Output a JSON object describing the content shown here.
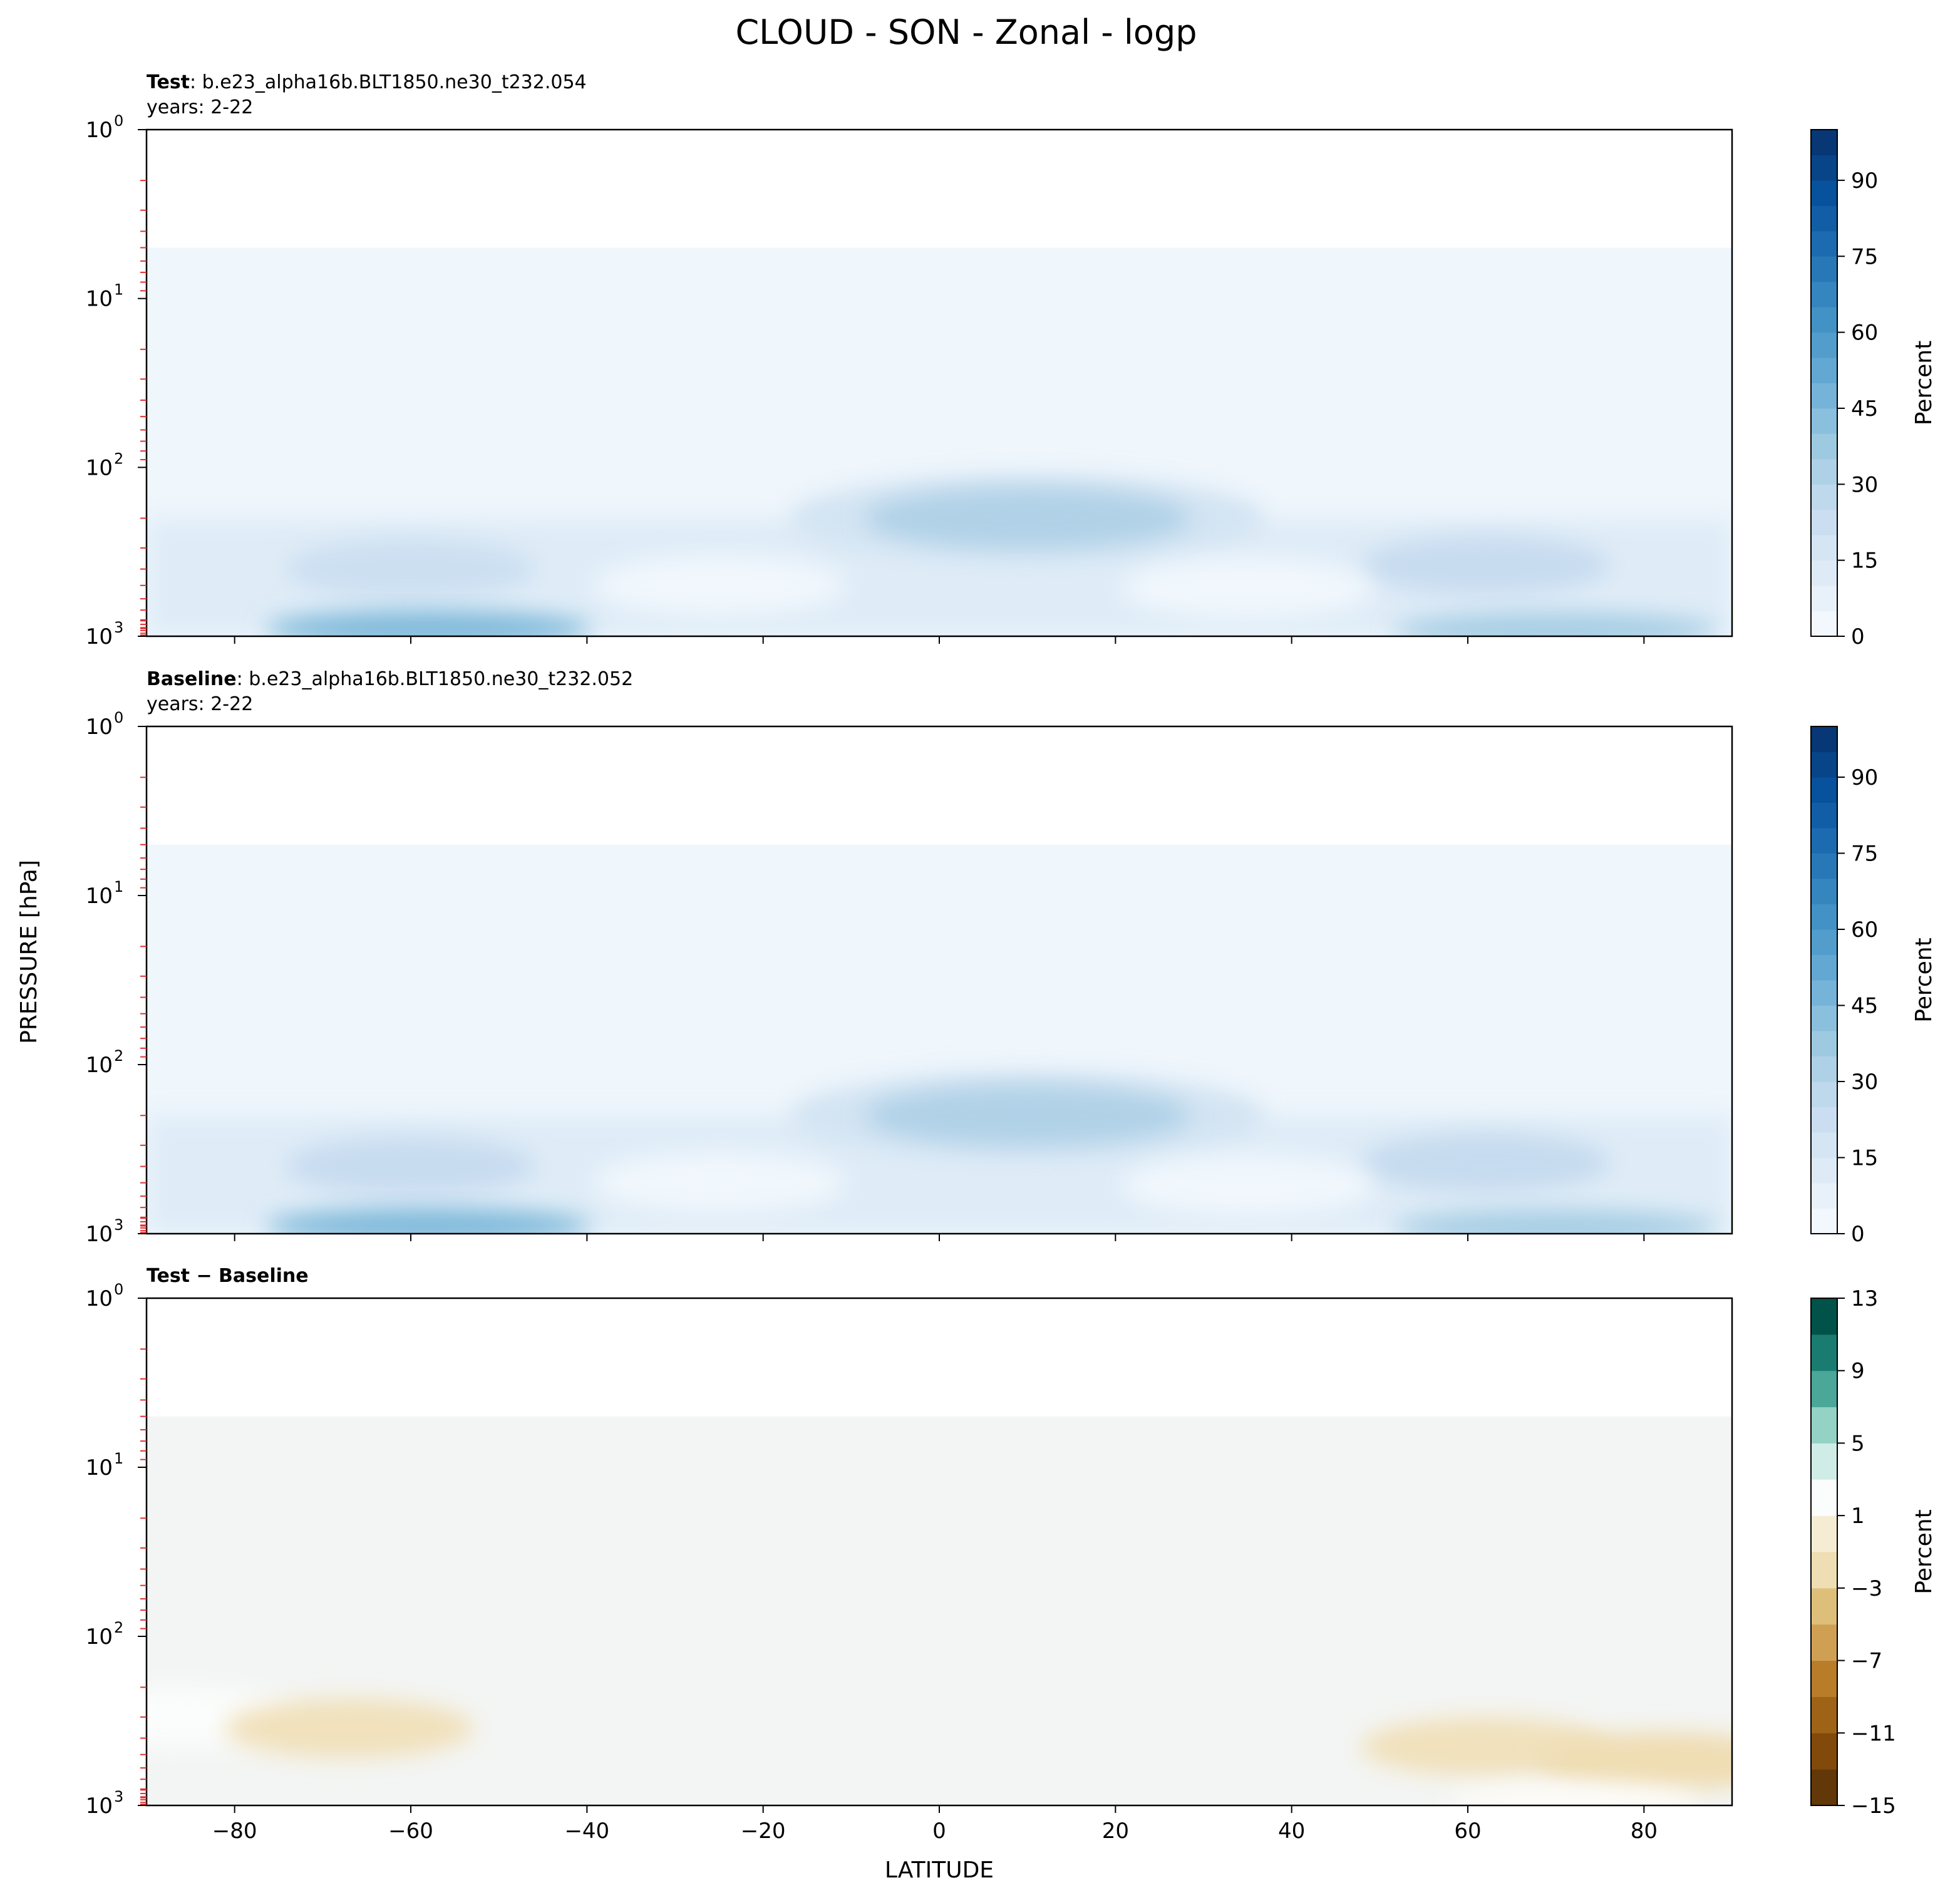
{
  "figure": {
    "suptitle": "CLOUD - SON - Zonal - logp",
    "ylabel": "PRESSURE [hPa]",
    "xlabel": "LATITUDE"
  },
  "chart_data": [
    {
      "type": "heatmap",
      "title_bold": "Test",
      "title_rest": ": b.e23_alpha16b.BLT1850.ne30_t232.054",
      "subtitle": "years: 2-22",
      "x": [
        -90,
        90
      ],
      "xticks": [
        -80,
        -60,
        -40,
        -20,
        0,
        20,
        40,
        60,
        80
      ],
      "xtick_labels_shown": false,
      "ylim": [
        1000,
        1
      ],
      "yscale": "log",
      "yticks": [
        1,
        10,
        100,
        1000
      ],
      "ytick_labels": [
        "10^0",
        "10^1",
        "10^2",
        "10^3"
      ],
      "data_top_hpa": 5,
      "colorbar": {
        "label": "Percent",
        "range": [
          0,
          100
        ],
        "ticks": [
          0,
          15,
          30,
          45,
          60,
          75,
          90
        ],
        "levels": 20,
        "colormap": "Blues",
        "colors": [
          "#f7fbff",
          "#deebf7",
          "#c6dbef",
          "#9ecae1",
          "#6baed6",
          "#4292c6",
          "#2171b5",
          "#08519c",
          "#08306b"
        ]
      },
      "features": [
        {
          "lat": -60,
          "p": 400,
          "value": 22
        },
        {
          "lat": -58,
          "p": 900,
          "value": 45
        },
        {
          "lat": 10,
          "p": 200,
          "value": 32
        },
        {
          "lat": 62,
          "p": 380,
          "value": 24
        },
        {
          "lat": 70,
          "p": 920,
          "value": 35
        },
        {
          "lat": -25,
          "p": 500,
          "value": 3
        },
        {
          "lat": 35,
          "p": 520,
          "value": 3
        }
      ]
    },
    {
      "type": "heatmap",
      "title_bold": "Baseline",
      "title_rest": ": b.e23_alpha16b.BLT1850.ne30_t232.052",
      "subtitle": "years: 2-22",
      "x": [
        -90,
        90
      ],
      "xticks": [
        -80,
        -60,
        -40,
        -20,
        0,
        20,
        40,
        60,
        80
      ],
      "xtick_labels_shown": false,
      "ylim": [
        1000,
        1
      ],
      "yscale": "log",
      "yticks": [
        1,
        10,
        100,
        1000
      ],
      "ytick_labels": [
        "10^0",
        "10^1",
        "10^2",
        "10^3"
      ],
      "data_top_hpa": 5,
      "colorbar": {
        "label": "Percent",
        "range": [
          0,
          100
        ],
        "ticks": [
          0,
          15,
          30,
          45,
          60,
          75,
          90
        ],
        "levels": 20,
        "colormap": "Blues",
        "colors": [
          "#f7fbff",
          "#deebf7",
          "#c6dbef",
          "#9ecae1",
          "#6baed6",
          "#4292c6",
          "#2171b5",
          "#08519c",
          "#08306b"
        ]
      },
      "features": [
        {
          "lat": -60,
          "p": 400,
          "value": 24
        },
        {
          "lat": -58,
          "p": 900,
          "value": 45
        },
        {
          "lat": 10,
          "p": 200,
          "value": 32
        },
        {
          "lat": 62,
          "p": 380,
          "value": 25
        },
        {
          "lat": 70,
          "p": 920,
          "value": 35
        },
        {
          "lat": -25,
          "p": 500,
          "value": 3
        },
        {
          "lat": 35,
          "p": 520,
          "value": 3
        }
      ]
    },
    {
      "type": "heatmap",
      "title_bold": "Test − Baseline",
      "title_rest": "",
      "subtitle": "",
      "x": [
        -90,
        90
      ],
      "xticks": [
        -80,
        -60,
        -40,
        -20,
        0,
        20,
        40,
        60,
        80
      ],
      "xtick_labels": [
        "−80",
        "−60",
        "−40",
        "−20",
        "0",
        "20",
        "40",
        "60",
        "80"
      ],
      "xtick_labels_shown": true,
      "ylim": [
        1000,
        1
      ],
      "yscale": "log",
      "yticks": [
        1,
        10,
        100,
        1000
      ],
      "ytick_labels": [
        "10^0",
        "10^1",
        "10^2",
        "10^3"
      ],
      "data_top_hpa": 5,
      "colorbar": {
        "label": "Percent",
        "range": [
          -15,
          13
        ],
        "ticks": [
          -15,
          -11,
          -7,
          -3,
          1,
          5,
          9,
          13
        ],
        "tick_labels": [
          "−15",
          "−11",
          "−7",
          "−3",
          "1",
          "5",
          "9",
          "13"
        ],
        "levels": 14,
        "colormap": "BrBG",
        "colors": [
          "#543005",
          "#6f3f0a",
          "#8c510a",
          "#a86b1e",
          "#bf812d",
          "#d3a75d",
          "#dfc27d",
          "#f0deb5",
          "#f6ebd2",
          "#ffffff",
          "#d8f0eb",
          "#a6dccf",
          "#5ab4a5",
          "#2a8a7d",
          "#01665e",
          "#003c30"
        ]
      },
      "background_value": 0,
      "features": [
        {
          "lat": -87,
          "p": 300,
          "value": 2
        },
        {
          "lat": -67,
          "p": 350,
          "value": -1.5
        },
        {
          "lat": 62,
          "p": 450,
          "value": -1.5
        },
        {
          "lat": 82,
          "p": 550,
          "value": -2
        },
        {
          "lat": 72,
          "p": 950,
          "value": 1.5
        }
      ]
    }
  ]
}
